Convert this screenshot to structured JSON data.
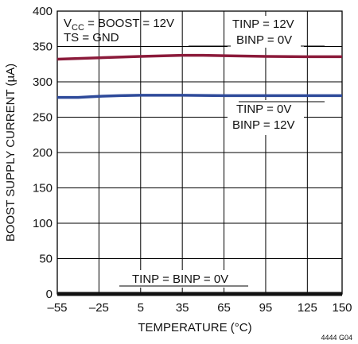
{
  "chart_data": {
    "type": "line",
    "title": "",
    "xlabel": "TEMPERATURE (°C)",
    "ylabel": "BOOST SUPPLY CURRENT (µA)",
    "xlim": [
      -55,
      150
    ],
    "ylim": [
      0,
      400
    ],
    "x_ticks": [
      -55,
      -25,
      5,
      35,
      65,
      95,
      125,
      150
    ],
    "y_ticks": [
      0,
      50,
      100,
      150,
      200,
      250,
      300,
      350,
      400
    ],
    "x_tick_labels": [
      "–55",
      "–25",
      "5",
      "35",
      "65",
      "95",
      "125",
      "150"
    ],
    "y_tick_labels": [
      "0",
      "50",
      "100",
      "150",
      "200",
      "250",
      "300",
      "350",
      "400"
    ],
    "grid": true,
    "series": [
      {
        "color": "#8b1a3a",
        "x": [
          -55,
          -25,
          5,
          35,
          50,
          65,
          95,
          125,
          150
        ],
        "y": [
          332,
          334,
          336,
          337.5,
          337.5,
          337,
          336,
          335.5,
          335.5
        ]
      },
      {
        "color": "#2e4a9a",
        "x": [
          -55,
          -40,
          -25,
          -10,
          5,
          35,
          65,
          95,
          125,
          150
        ],
        "y": [
          278,
          278,
          279.5,
          280.5,
          281,
          281,
          280.5,
          280.5,
          280.5,
          280.5
        ]
      },
      {
        "color": "#111111",
        "x": [
          -55,
          150
        ],
        "y": [
          0,
          0
        ]
      }
    ],
    "annotations": {
      "conditions_prefix": "V",
      "conditions_subscript": "CC",
      "conditions_suffix": " = BOOST = 12V",
      "conditions_line2": "TS = GND",
      "top_series_label_1": "TINP = 12V",
      "top_series_label_2": "BINP = 0V",
      "mid_series_label_1": "TINP = 0V",
      "mid_series_label_2": "BINP = 12V",
      "bottom_series_label": "TINP = BINP = 0V"
    },
    "figure_code": "4444 G04"
  }
}
